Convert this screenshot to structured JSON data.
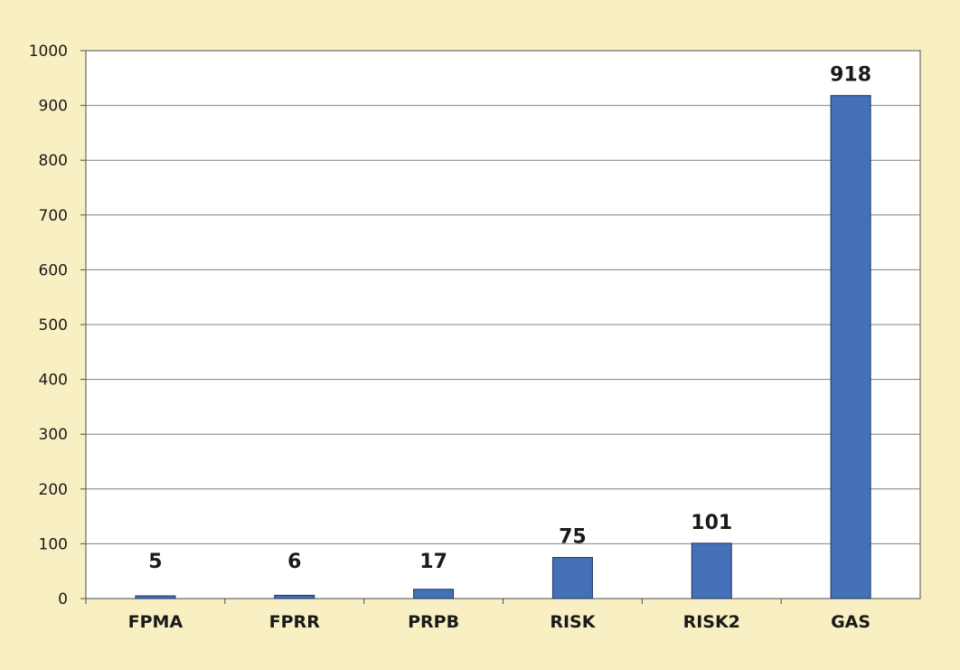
{
  "chart_data": {
    "type": "bar",
    "title": "",
    "xlabel": "",
    "ylabel": "",
    "categories": [
      "FPMA",
      "FPRR",
      "PRPB",
      "RISK",
      "RISK2",
      "GAS"
    ],
    "values": [
      5,
      6,
      17,
      75,
      101,
      918
    ],
    "data_labels": [
      "5",
      "6",
      "17",
      "75",
      "101",
      "918"
    ],
    "ylim": [
      0,
      1000
    ],
    "yticks": [
      0,
      100,
      200,
      300,
      400,
      500,
      600,
      700,
      800,
      900,
      1000
    ],
    "grid": true,
    "legend": "none",
    "colors": {
      "bar": "#4470b7",
      "bar_stroke": "#1f3566",
      "plot_background": "#ffffff",
      "page_background": "#f8efc2",
      "grid": "#7f7f7f",
      "axis": "#4d4d4d"
    }
  }
}
